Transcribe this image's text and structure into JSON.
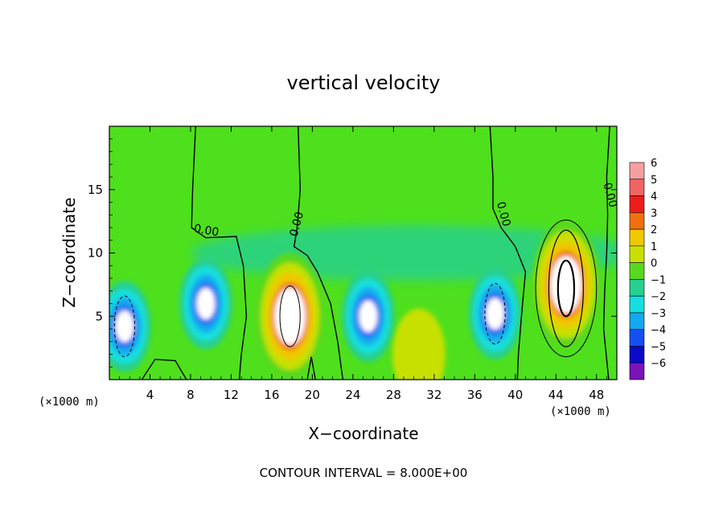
{
  "chart_data": {
    "type": "heatmap",
    "title": "vertical velocity",
    "xlabel": "X−coordinate",
    "ylabel": "Z−coordinate",
    "x_unit_left": "(×1000 m)",
    "x_unit_right": "(×1000 m)",
    "footer": "CONTOUR INTERVAL = 8.000E+00",
    "xlim": [
      0,
      50
    ],
    "ylim": [
      0,
      20
    ],
    "x_ticks": [
      4,
      8,
      12,
      16,
      20,
      24,
      28,
      32,
      36,
      40,
      44,
      48
    ],
    "x_tick_labels": [
      "4",
      "8",
      "12",
      "16",
      "20",
      "24",
      "28",
      "32",
      "36",
      "40",
      "44",
      "48"
    ],
    "y_ticks": [
      5,
      10,
      15
    ],
    "y_tick_labels": [
      "5",
      "10",
      "15"
    ],
    "contour_interval": 8,
    "contour_labels": [
      {
        "text": "0.00",
        "x": 9.5,
        "y": 11.5
      },
      {
        "text": "0.00",
        "x": 18.8,
        "y": 12.2
      },
      {
        "text": "0.00",
        "x": 38.5,
        "y": 13.0
      },
      {
        "text": "0.00",
        "x": 49.0,
        "y": 14.5
      }
    ],
    "colorbar": {
      "levels": [
        6,
        5,
        4,
        3,
        2,
        1,
        0,
        -1,
        -2,
        -3,
        -4,
        -5,
        -6
      ],
      "labels": [
        "6",
        "5",
        "4",
        "3",
        "2",
        "1",
        "0",
        "−1",
        "−2",
        "−3",
        "−4",
        "−5",
        "−6"
      ],
      "colors": [
        "#f5a0a0",
        "#f06464",
        "#ee1c1c",
        "#f07010",
        "#f0c800",
        "#c8e000",
        "#5ad81e",
        "#28d090",
        "#14e0e0",
        "#14a8f0",
        "#1450f0",
        "#0a0ac8",
        "#7a14b8"
      ]
    },
    "features": [
      {
        "sign": "down",
        "x": 1.5,
        "y": 4.2,
        "peak": -10
      },
      {
        "sign": "down",
        "x": 9.5,
        "y": 6.0,
        "peak": -8
      },
      {
        "sign": "up",
        "x": 17.8,
        "y": 5.0,
        "peak": 12
      },
      {
        "sign": "down",
        "x": 25.5,
        "y": 5.0,
        "peak": -8
      },
      {
        "sign": "down",
        "x": 38.0,
        "y": 5.2,
        "peak": -10
      },
      {
        "sign": "up",
        "x": 45.0,
        "y": 7.5,
        "peak": 18
      },
      {
        "sign": "up",
        "x": 30.5,
        "y": 2.0,
        "peak": 2
      }
    ],
    "colors": {
      "background_field": "#4ee01c",
      "contour_line": "#000000"
    }
  }
}
